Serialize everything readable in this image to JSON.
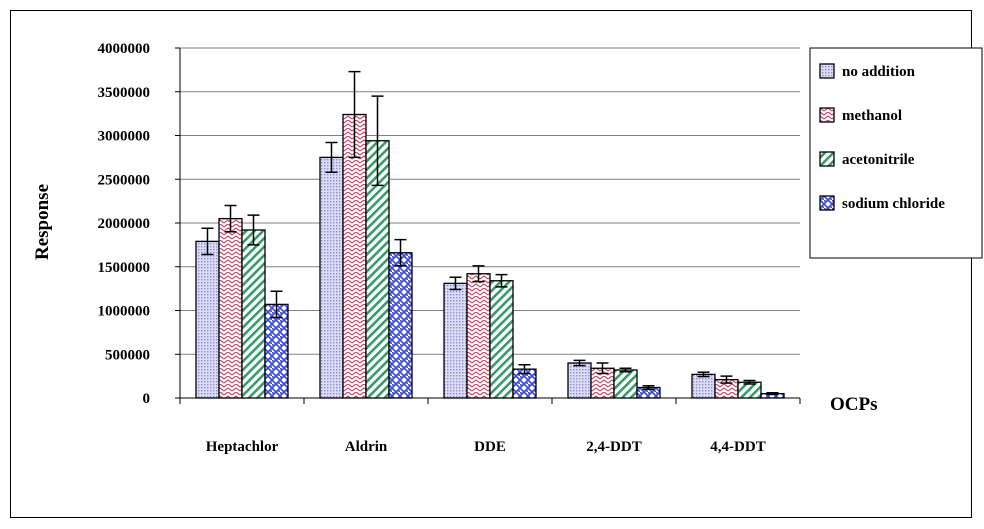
{
  "chart_data": {
    "type": "bar",
    "title": "",
    "xlabel": "OCPs",
    "ylabel": "Response",
    "ylim": [
      0,
      4000000
    ],
    "yticks": [
      0,
      500000,
      1000000,
      1500000,
      2000000,
      2500000,
      3000000,
      3500000,
      4000000
    ],
    "ytick_labels": [
      "0",
      "500000",
      "1000000",
      "1500000",
      "2000000",
      "2500000",
      "3000000",
      "3500000",
      "4000000"
    ],
    "grid": true,
    "legend_position": "right",
    "categories": [
      "Heptachlor",
      "Aldrin",
      "DDE",
      "2,4-DDT",
      "4,4-DDT"
    ],
    "series": [
      {
        "name": "no addition",
        "fill": "#c8c8f0",
        "pattern": "dots",
        "values": [
          1790000,
          2750000,
          1310000,
          400000,
          270000
        ],
        "errors": [
          150000,
          170000,
          70000,
          30000,
          25000
        ]
      },
      {
        "name": "methanol",
        "fill": "#c05070",
        "pattern": "zigzag",
        "values": [
          2050000,
          3240000,
          1420000,
          340000,
          210000
        ],
        "errors": [
          150000,
          490000,
          90000,
          60000,
          40000
        ]
      },
      {
        "name": "acetonitrile",
        "fill": "#3a9a6a",
        "pattern": "diagonal",
        "values": [
          1920000,
          2940000,
          1340000,
          320000,
          180000
        ],
        "errors": [
          170000,
          510000,
          70000,
          20000,
          20000
        ]
      },
      {
        "name": "sodium chloride",
        "fill": "#3a48d8",
        "pattern": "weave",
        "values": [
          1070000,
          1660000,
          330000,
          120000,
          50000
        ],
        "errors": [
          150000,
          150000,
          50000,
          20000,
          10000
        ]
      }
    ]
  }
}
